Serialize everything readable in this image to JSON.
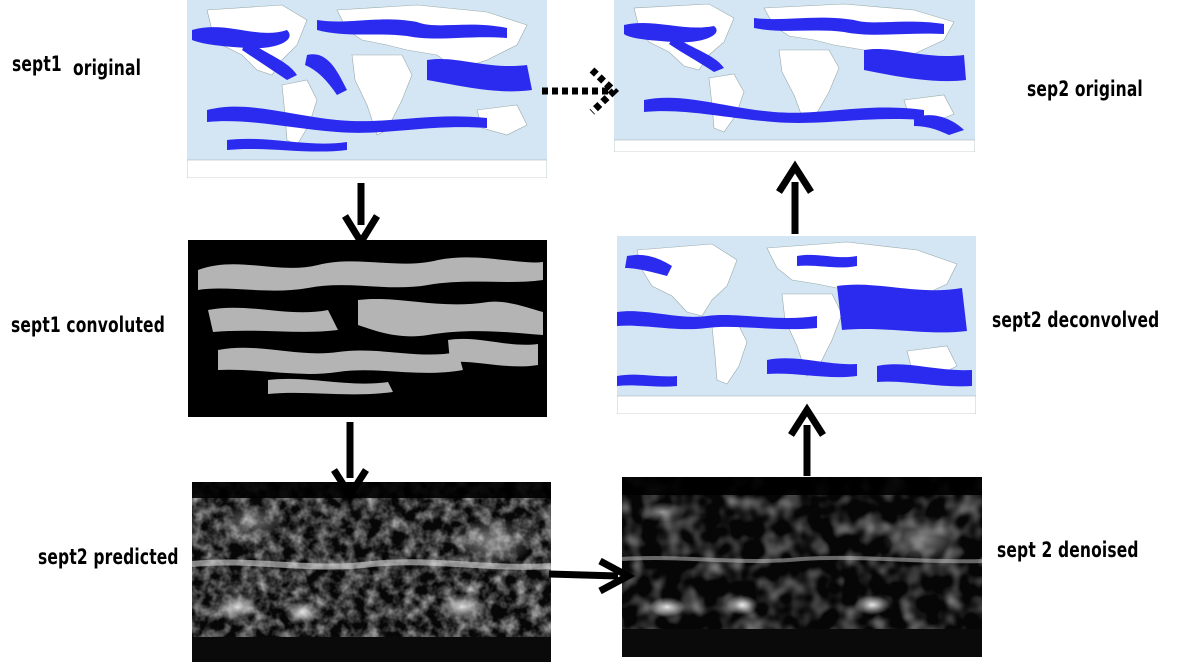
{
  "labels": {
    "sept1_original": "sept1",
    "sept1_original_suffix": "original",
    "sep2_original": "sep2 original",
    "sept1_convoluted": "sept1 convoluted",
    "sept2_deconvolved": "sept2 deconvolved",
    "sept2_predicted": "sept2 predicted",
    "sept2_denoised": "sept 2 denoised"
  },
  "colors": {
    "ocean": "#d4e6f4",
    "land": "#ffffff",
    "cloud": "#2b2bef",
    "dark": "#000000",
    "gray_cloud": "#b4b4b4"
  }
}
